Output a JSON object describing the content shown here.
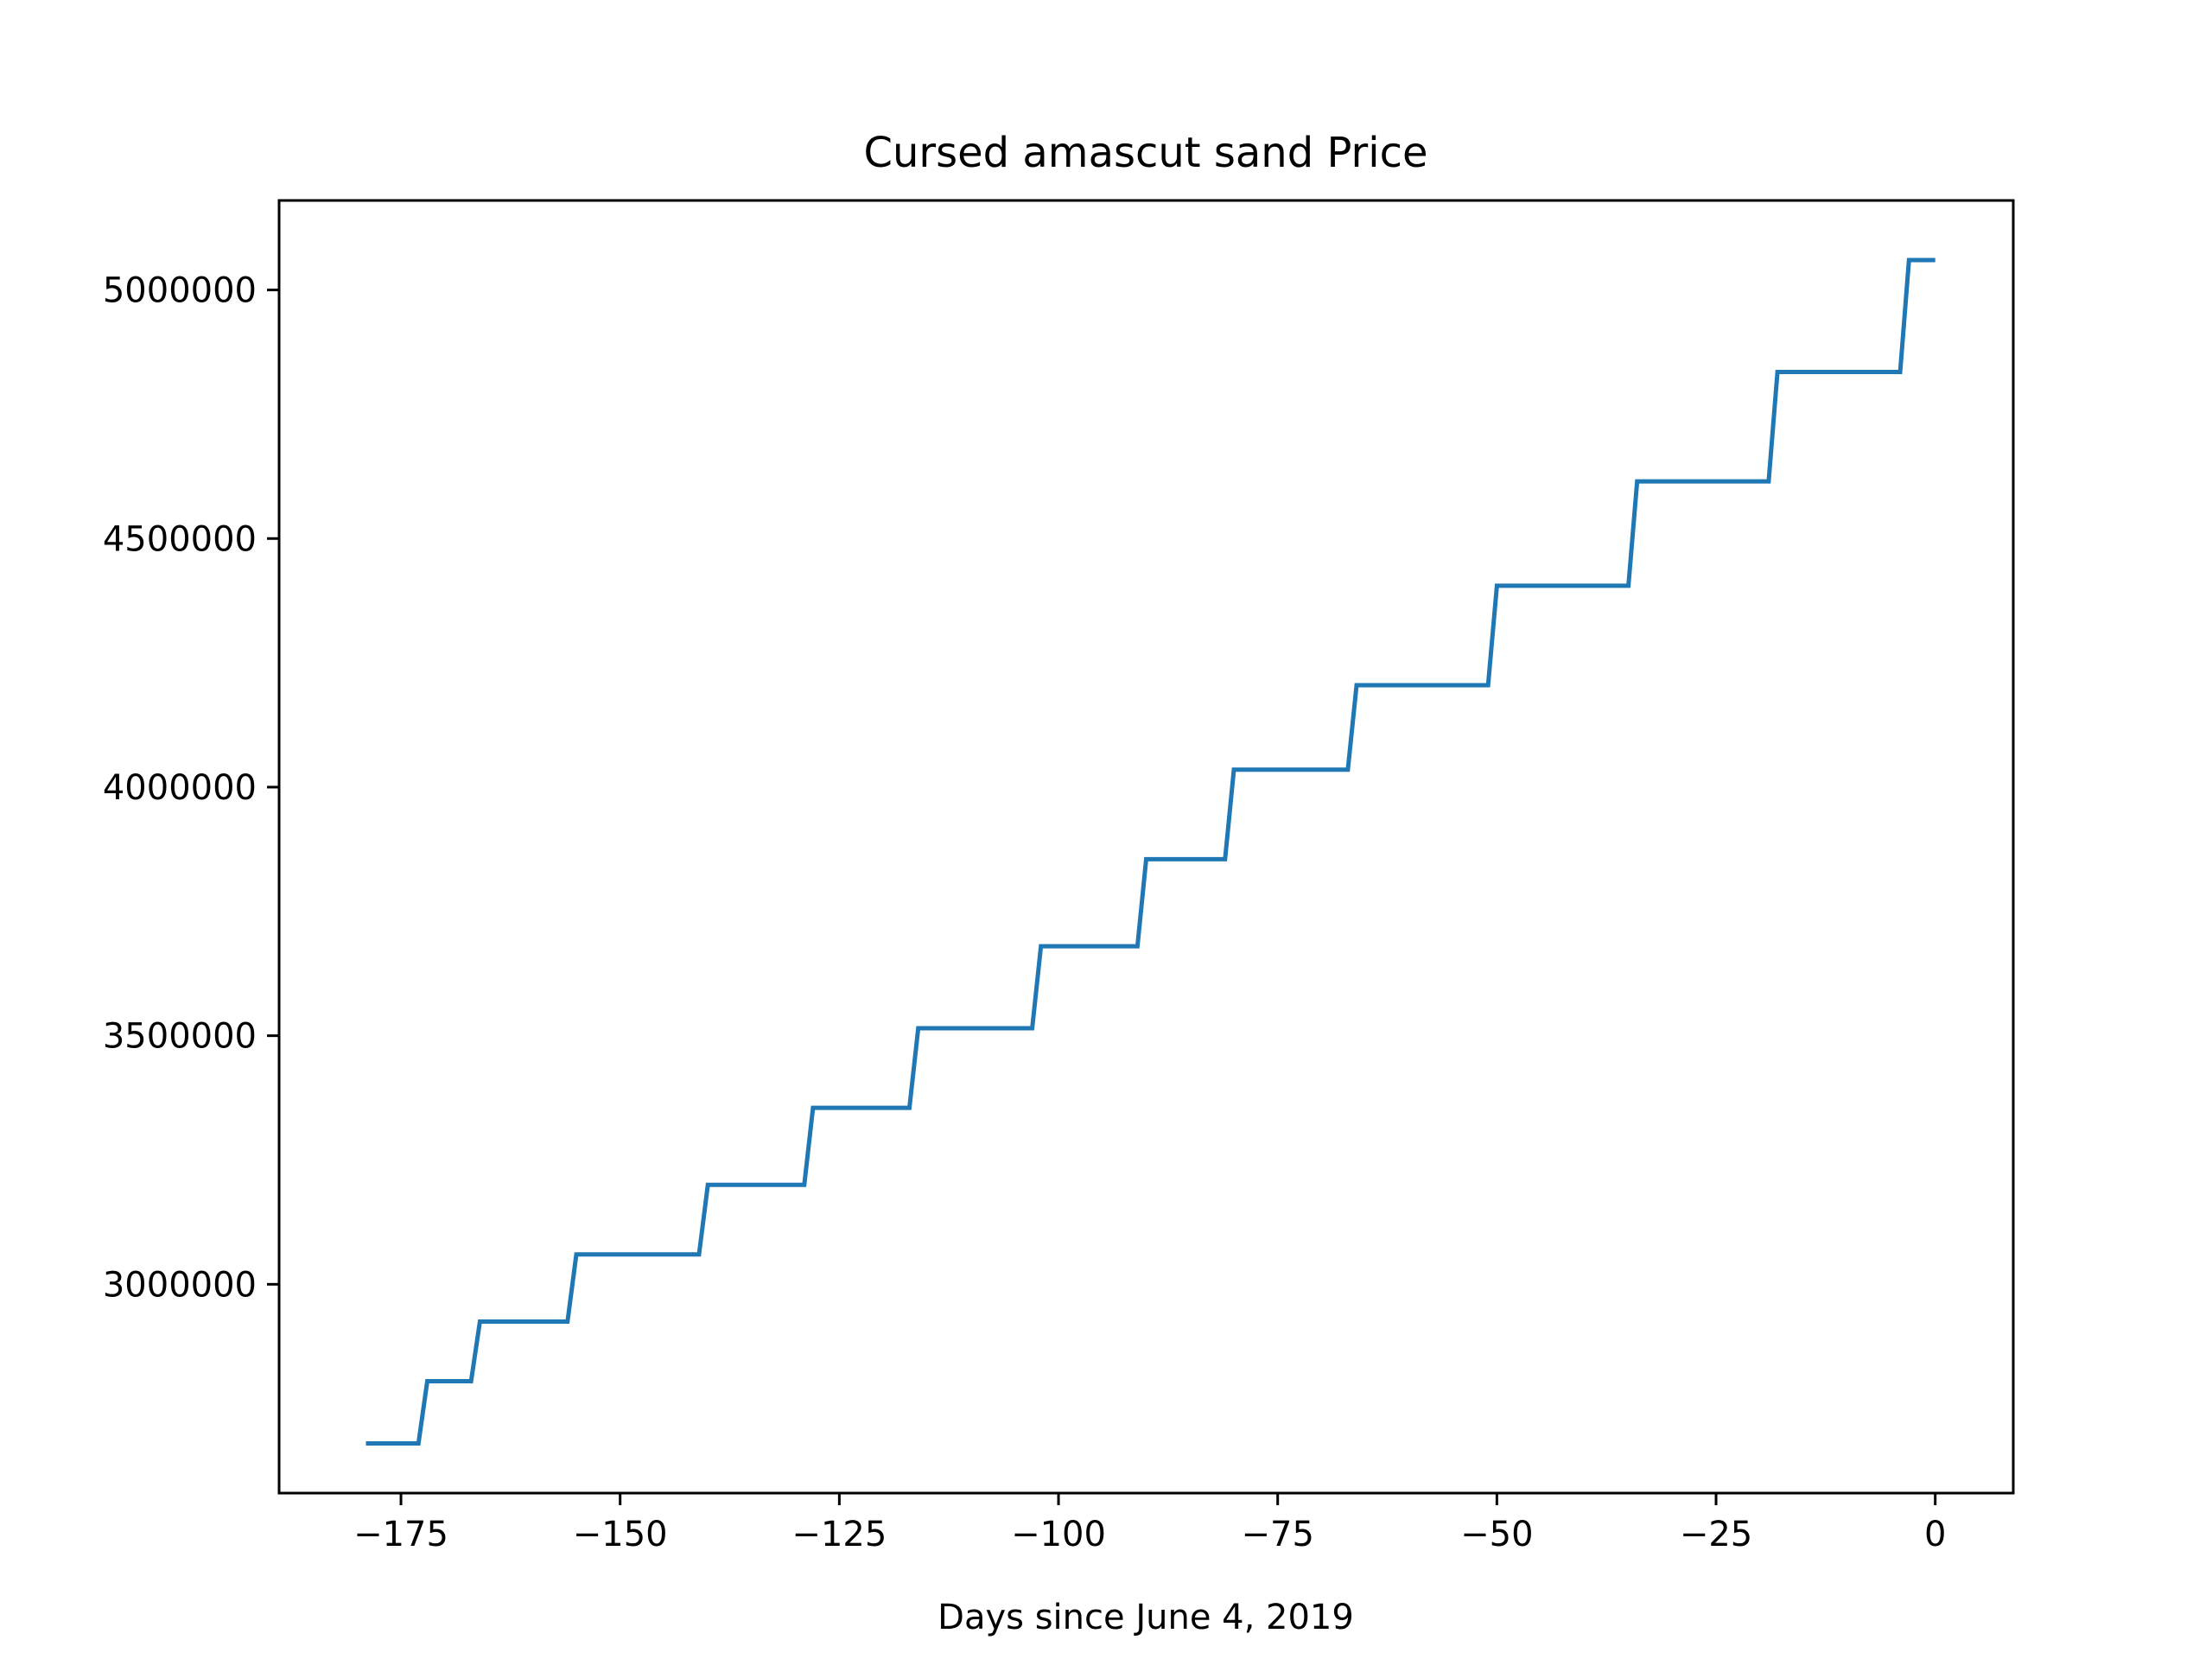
{
  "chart_data": {
    "type": "line",
    "title": "Cursed amascut sand Price",
    "xlabel": "Days since June 4, 2019",
    "ylabel": "",
    "xlim": [
      -188.9,
      8.9
    ],
    "ylim": [
      2580000,
      5180000
    ],
    "x_ticks": [
      {
        "value": -175,
        "label": "−175"
      },
      {
        "value": -150,
        "label": "−150"
      },
      {
        "value": -125,
        "label": "−125"
      },
      {
        "value": -100,
        "label": "−100"
      },
      {
        "value": -75,
        "label": "−75"
      },
      {
        "value": -50,
        "label": "−50"
      },
      {
        "value": -25,
        "label": "−25"
      },
      {
        "value": 0,
        "label": "0"
      }
    ],
    "y_ticks": [
      {
        "value": 3000000,
        "label": "3000000"
      },
      {
        "value": 3500000,
        "label": "3500000"
      },
      {
        "value": 4000000,
        "label": "4000000"
      },
      {
        "value": 4500000,
        "label": "4500000"
      },
      {
        "value": 5000000,
        "label": "5000000"
      }
    ],
    "grid": false,
    "series": [
      {
        "color": "#1f77b4",
        "x": [
          -179,
          -173,
          -172,
          -167,
          -166,
          -156,
          -155,
          -141,
          -140,
          -129,
          -128,
          -117,
          -116,
          -103,
          -102,
          -91,
          -90,
          -81,
          -80,
          -67,
          -66,
          -51,
          -50,
          -35,
          -34,
          -19,
          -18,
          -4,
          -3,
          0
        ],
        "y": [
          2680000,
          2680000,
          2805000,
          2805000,
          2925000,
          2925000,
          3060000,
          3060000,
          3200000,
          3200000,
          3355000,
          3355000,
          3515000,
          3515000,
          3680000,
          3680000,
          3855000,
          3855000,
          4035000,
          4035000,
          4205000,
          4205000,
          4405000,
          4405000,
          4615000,
          4615000,
          4835000,
          4835000,
          5060000,
          5060000
        ]
      }
    ]
  }
}
